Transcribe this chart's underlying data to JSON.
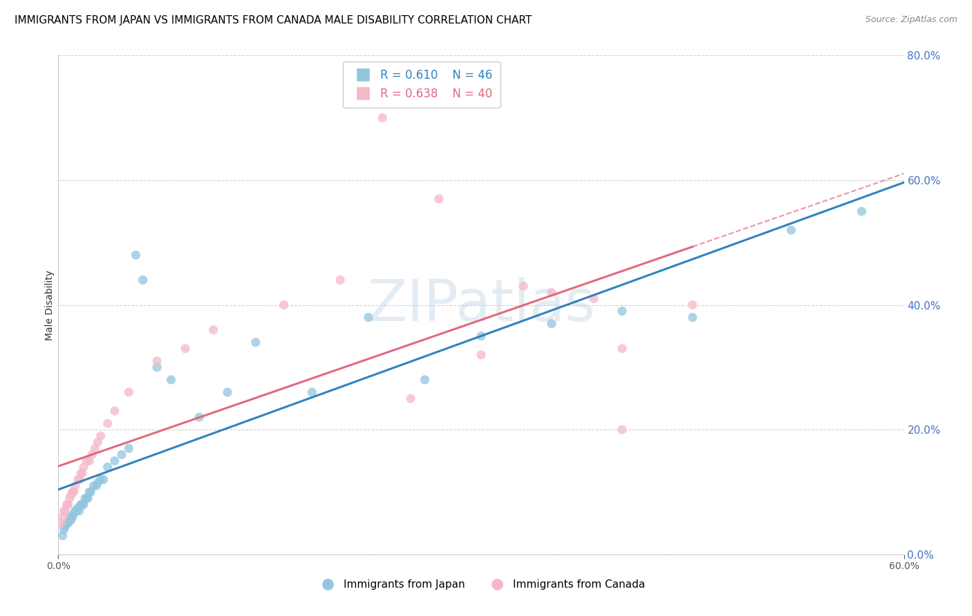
{
  "title": "IMMIGRANTS FROM JAPAN VS IMMIGRANTS FROM CANADA MALE DISABILITY CORRELATION CHART",
  "source": "Source: ZipAtlas.com",
  "ylabel": "Male Disability",
  "legend_label1": "Immigrants from Japan",
  "legend_label2": "Immigrants from Canada",
  "R1": 0.61,
  "N1": 46,
  "R2": 0.638,
  "N2": 40,
  "color_japan": "#92c5de",
  "color_canada": "#f4b8c8",
  "color_japan_line": "#3182bd",
  "color_canada_line": "#e0697f",
  "background_color": "#ffffff",
  "grid_color": "#d0d0d0",
  "right_axis_color": "#4472c4",
  "japan_x": [
    0.3,
    0.4,
    0.5,
    0.6,
    0.7,
    0.8,
    0.9,
    1.0,
    1.1,
    1.2,
    1.3,
    1.4,
    1.5,
    1.6,
    1.7,
    1.8,
    1.9,
    2.0,
    2.1,
    2.2,
    2.3,
    2.5,
    2.7,
    2.8,
    3.0,
    3.2,
    3.5,
    4.0,
    4.5,
    5.0,
    5.5,
    6.0,
    7.0,
    8.0,
    10.0,
    12.0,
    14.0,
    18.0,
    22.0,
    26.0,
    30.0,
    35.0,
    40.0,
    45.0,
    52.0,
    57.0
  ],
  "japan_y": [
    3.0,
    4.0,
    4.5,
    5.0,
    5.0,
    6.0,
    5.5,
    6.0,
    6.5,
    7.0,
    7.0,
    7.5,
    7.0,
    8.0,
    8.0,
    8.0,
    9.0,
    9.0,
    9.0,
    10.0,
    10.0,
    11.0,
    11.0,
    11.5,
    12.0,
    12.0,
    14.0,
    15.0,
    16.0,
    17.0,
    48.0,
    44.0,
    30.0,
    28.0,
    22.0,
    26.0,
    34.0,
    26.0,
    38.0,
    28.0,
    35.0,
    37.0,
    39.0,
    38.0,
    52.0,
    55.0
  ],
  "canada_x": [
    0.2,
    0.3,
    0.4,
    0.5,
    0.6,
    0.7,
    0.8,
    0.9,
    1.0,
    1.1,
    1.2,
    1.4,
    1.5,
    1.6,
    1.7,
    1.8,
    2.0,
    2.2,
    2.4,
    2.6,
    2.8,
    3.0,
    3.5,
    4.0,
    5.0,
    7.0,
    9.0,
    11.0,
    16.0,
    20.0,
    25.0,
    30.0,
    35.0,
    38.0,
    40.0,
    40.0,
    45.0,
    23.0,
    27.0,
    33.0
  ],
  "canada_y": [
    5.0,
    6.0,
    7.0,
    7.0,
    8.0,
    8.0,
    9.0,
    9.5,
    10.0,
    10.0,
    11.0,
    12.0,
    12.0,
    13.0,
    13.0,
    14.0,
    15.0,
    15.0,
    16.0,
    17.0,
    18.0,
    19.0,
    21.0,
    23.0,
    26.0,
    31.0,
    33.0,
    36.0,
    40.0,
    44.0,
    25.0,
    32.0,
    42.0,
    41.0,
    20.0,
    33.0,
    40.0,
    70.0,
    57.0,
    43.0
  ],
  "xmin": 0.0,
  "xmax": 60.0,
  "ymin": 0.0,
  "ymax": 80.0,
  "xticks": [
    0.0,
    60.0
  ],
  "yticks_right": [
    0.0,
    20.0,
    40.0,
    60.0,
    80.0
  ],
  "watermark_text": "ZIPatlas",
  "title_fontsize": 11,
  "axis_label_fontsize": 10,
  "tick_fontsize": 10,
  "legend_fontsize": 11,
  "marker_size": 90
}
